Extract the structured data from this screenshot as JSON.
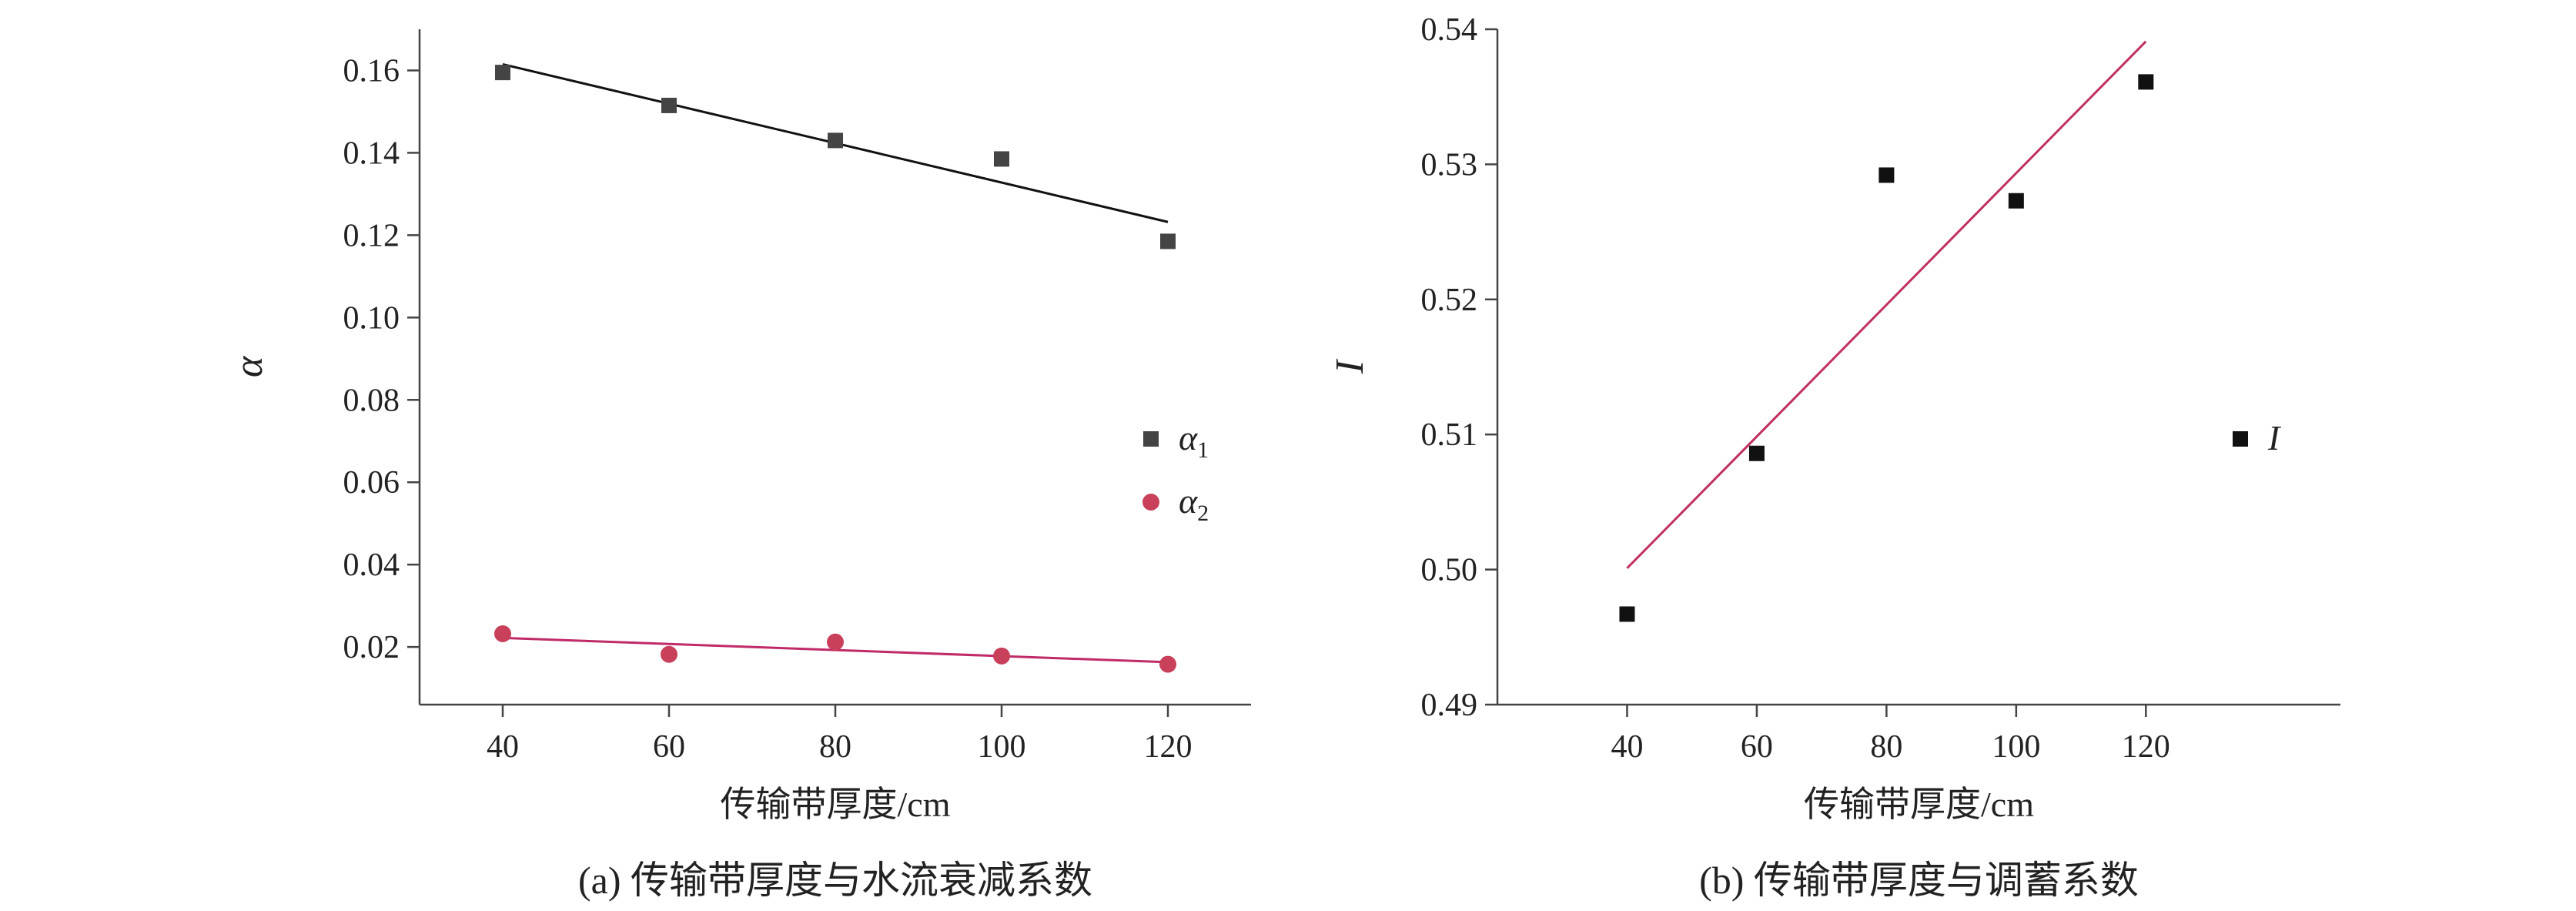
{
  "chart_data": [
    {
      "type": "scatter",
      "caption": "(a) 传输带厚度与水流衰减系数",
      "xlabel": "传输带厚度/cm",
      "ylabel": "α",
      "xlim": [
        30,
        130
      ],
      "ylim": [
        0.006,
        0.17
      ],
      "xticks": [
        40,
        60,
        80,
        100,
        120
      ],
      "yticks": [
        0.02,
        0.04,
        0.06,
        0.08,
        0.1,
        0.12,
        0.14,
        0.16
      ],
      "ytick_labels": [
        "0.02",
        "0.04",
        "0.06",
        "0.08",
        "0.10",
        "0.12",
        "0.14",
        "0.16"
      ],
      "series": [
        {
          "name": "α1",
          "name_base": "α",
          "name_sub": "1",
          "marker": "square",
          "color": "#444444",
          "x": [
            40,
            60,
            80,
            100,
            120
          ],
          "y": [
            0.1595,
            0.1515,
            0.143,
            0.1385,
            0.1185
          ],
          "fit": {
            "x": [
              40,
              120
            ],
            "y": [
              0.1615,
              0.1232
            ],
            "color": "#111111"
          }
        },
        {
          "name": "α2",
          "name_base": "α",
          "name_sub": "2",
          "marker": "circle",
          "color": "#c8405a",
          "x": [
            40,
            60,
            80,
            100,
            120
          ],
          "y": [
            0.0232,
            0.0182,
            0.0212,
            0.0178,
            0.0158
          ],
          "fit": {
            "x": [
              40,
              120
            ],
            "y": [
              0.0222,
              0.0163
            ],
            "color": "#c02a68"
          }
        }
      ],
      "legend_position": "right"
    },
    {
      "type": "scatter",
      "caption": "(b) 传输带厚度与调蓄系数",
      "xlabel": "传输带厚度/cm",
      "ylabel": "I",
      "xlim": [
        20,
        150
      ],
      "ylim": [
        0.49,
        0.54
      ],
      "xticks": [
        40,
        60,
        80,
        100,
        120
      ],
      "yticks": [
        0.49,
        0.5,
        0.51,
        0.52,
        0.53,
        0.54
      ],
      "ytick_labels": [
        "0.49",
        "0.50",
        "0.51",
        "0.52",
        "0.53",
        "0.54"
      ],
      "series": [
        {
          "name": "I",
          "marker": "square",
          "color": "#111111",
          "x": [
            40,
            60,
            80,
            100,
            120
          ],
          "y": [
            0.4967,
            0.5086,
            0.5292,
            0.5273,
            0.5361
          ],
          "fit": {
            "x": [
              40,
              120
            ],
            "y": [
              0.5001,
              0.5391
            ],
            "color": "#c0305e"
          }
        }
      ],
      "legend_position": "right"
    }
  ]
}
